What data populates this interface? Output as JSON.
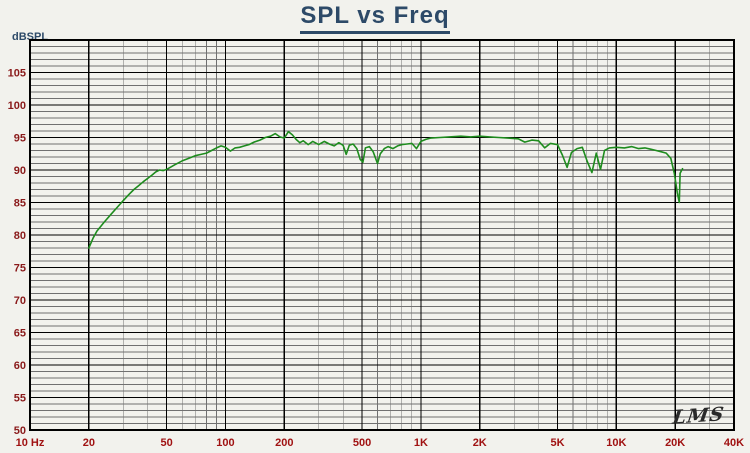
{
  "header": {
    "title": "SPL vs Freq"
  },
  "axis": {
    "y_unit_label": "dBSPL"
  },
  "logo": {
    "text": "LMS"
  },
  "colors": {
    "background": "#f2f2ed",
    "title": "#2d4a68",
    "curve": "#1e8c1e",
    "grid_major": "#000000",
    "grid_minor": "#707070",
    "y_labels": "#8a1a1a",
    "x_labels": "#a01212",
    "border": "#000000"
  },
  "chart_data": {
    "type": "line",
    "title": "SPL vs Freq",
    "xlabel": "",
    "ylabel": "dBSPL",
    "x_scale": "log",
    "xlim": [
      10,
      40000
    ],
    "ylim": [
      50,
      110
    ],
    "y_major_step": 5,
    "y_minor_step": 1,
    "grid": true,
    "x_tick_labels": [
      "10 Hz",
      "20",
      "50",
      "100",
      "200",
      "500",
      "1K",
      "2K",
      "5K",
      "10K",
      "20K",
      "40K"
    ],
    "x_tick_values": [
      10,
      20,
      50,
      100,
      200,
      500,
      1000,
      2000,
      5000,
      10000,
      20000,
      40000
    ],
    "y_tick_values": [
      105,
      100,
      95,
      90,
      85,
      80,
      75,
      70,
      65,
      60,
      55,
      50
    ],
    "series": [
      {
        "name": "SPL",
        "color": "#1e8c1e",
        "points": [
          [
            20,
            78
          ],
          [
            21,
            79.5
          ],
          [
            22,
            80.6
          ],
          [
            24,
            82
          ],
          [
            26,
            83.2
          ],
          [
            28,
            84.3
          ],
          [
            30,
            85.3
          ],
          [
            32,
            86.2
          ],
          [
            34,
            87
          ],
          [
            36,
            87.6
          ],
          [
            38,
            88.2
          ],
          [
            40,
            88.7
          ],
          [
            42,
            89.2
          ],
          [
            44,
            89.7
          ],
          [
            46,
            90
          ],
          [
            48,
            89.9
          ],
          [
            50,
            90.1
          ],
          [
            55,
            90.8
          ],
          [
            60,
            91.4
          ],
          [
            65,
            91.8
          ],
          [
            70,
            92.2
          ],
          [
            75,
            92.4
          ],
          [
            80,
            92.6
          ],
          [
            85,
            93
          ],
          [
            90,
            93.4
          ],
          [
            95,
            93.7
          ],
          [
            100,
            93.5
          ],
          [
            106,
            92.9
          ],
          [
            112,
            93.4
          ],
          [
            118,
            93.5
          ],
          [
            125,
            93.7
          ],
          [
            132,
            93.9
          ],
          [
            140,
            94.3
          ],
          [
            150,
            94.6
          ],
          [
            160,
            95
          ],
          [
            170,
            95.2
          ],
          [
            180,
            95.6
          ],
          [
            190,
            95.1
          ],
          [
            200,
            94.9
          ],
          [
            210,
            95.9
          ],
          [
            220,
            95.4
          ],
          [
            230,
            94.7
          ],
          [
            240,
            94.2
          ],
          [
            250,
            94.5
          ],
          [
            265,
            93.9
          ],
          [
            280,
            94.4
          ],
          [
            300,
            93.9
          ],
          [
            320,
            94.4
          ],
          [
            340,
            94
          ],
          [
            360,
            93.7
          ],
          [
            380,
            94.2
          ],
          [
            400,
            93.8
          ],
          [
            415,
            92.4
          ],
          [
            430,
            93.8
          ],
          [
            450,
            94
          ],
          [
            470,
            93.3
          ],
          [
            490,
            91.6
          ],
          [
            505,
            91.2
          ],
          [
            520,
            93.4
          ],
          [
            545,
            93.6
          ],
          [
            570,
            92.8
          ],
          [
            600,
            91
          ],
          [
            620,
            92.5
          ],
          [
            650,
            93.3
          ],
          [
            680,
            93.6
          ],
          [
            720,
            93.3
          ],
          [
            760,
            93.7
          ],
          [
            800,
            93.9
          ],
          [
            850,
            94
          ],
          [
            900,
            94.1
          ],
          [
            950,
            93.3
          ],
          [
            1000,
            94.4
          ],
          [
            1060,
            94.7
          ],
          [
            1120,
            94.9
          ],
          [
            1250,
            95
          ],
          [
            1400,
            95.1
          ],
          [
            1600,
            95.2
          ],
          [
            1800,
            95.1
          ],
          [
            2000,
            95.2
          ],
          [
            2240,
            95.1
          ],
          [
            2500,
            95
          ],
          [
            2800,
            94.9
          ],
          [
            3150,
            94.8
          ],
          [
            3400,
            94.3
          ],
          [
            3700,
            94.6
          ],
          [
            4000,
            94.5
          ],
          [
            4300,
            93.4
          ],
          [
            4600,
            94.1
          ],
          [
            5000,
            93.9
          ],
          [
            5300,
            92.3
          ],
          [
            5600,
            90.4
          ],
          [
            5900,
            92.7
          ],
          [
            6300,
            93.3
          ],
          [
            6700,
            93.5
          ],
          [
            7100,
            91.3
          ],
          [
            7500,
            89.6
          ],
          [
            7900,
            92.6
          ],
          [
            8300,
            90.1
          ],
          [
            8700,
            93
          ],
          [
            9200,
            93.4
          ],
          [
            10000,
            93.5
          ],
          [
            11000,
            93.4
          ],
          [
            12000,
            93.6
          ],
          [
            13000,
            93.3
          ],
          [
            14000,
            93.4
          ],
          [
            15000,
            93.2
          ],
          [
            16000,
            93
          ],
          [
            17000,
            92.8
          ],
          [
            18000,
            92.6
          ],
          [
            19000,
            91.8
          ],
          [
            19800,
            89.5
          ],
          [
            20500,
            86.5
          ],
          [
            21000,
            85
          ],
          [
            21200,
            89.5
          ],
          [
            21800,
            90.2
          ]
        ]
      }
    ]
  }
}
